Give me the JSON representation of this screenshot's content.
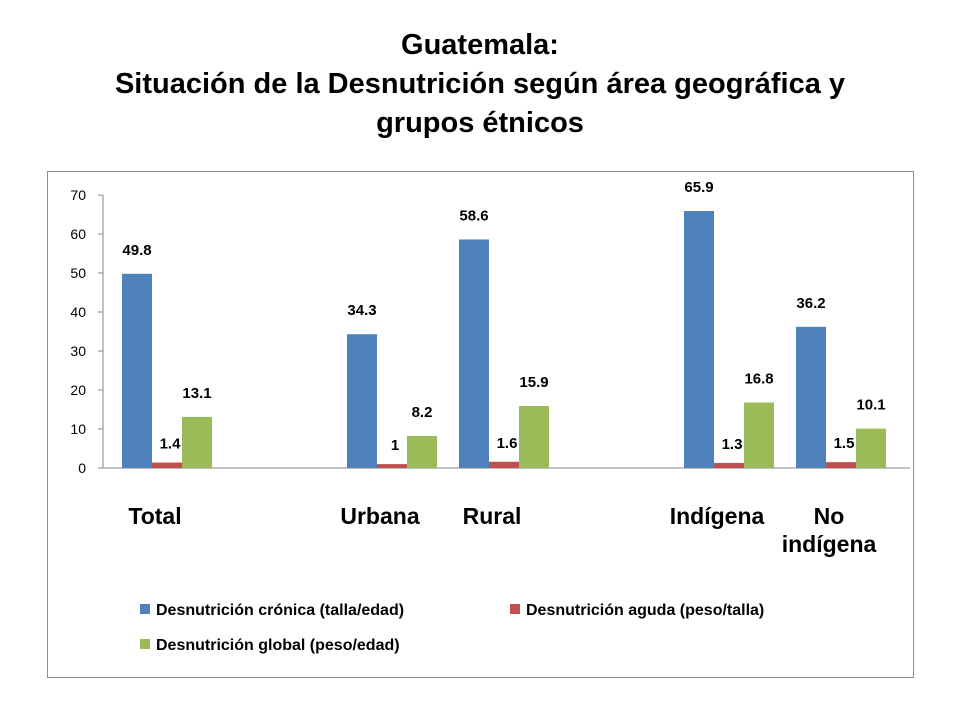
{
  "title_lines": [
    "Guatemala:",
    "Situación de la Desnutrición según área geográfica y",
    "grupos étnicos"
  ],
  "chart_data": {
    "type": "bar",
    "categories": [
      [
        "Total"
      ],
      [
        "Urbana"
      ],
      [
        "Rural"
      ],
      [
        "Indígena"
      ],
      [
        "No",
        "indígena"
      ]
    ],
    "series": [
      {
        "name": "Desnutrición crónica (talla/edad)",
        "color": "#4f81bd",
        "values": [
          49.8,
          34.3,
          58.6,
          65.9,
          36.2
        ]
      },
      {
        "name": "Desnutrición aguda (peso/talla)",
        "color": "#c0504d",
        "values": [
          1.4,
          1,
          1.6,
          1.3,
          1.5
        ]
      },
      {
        "name": "Desnutrición global (peso/edad)",
        "color": "#9bbb59",
        "values": [
          13.1,
          8.2,
          15.9,
          16.8,
          10.1
        ]
      }
    ],
    "data_labels": [
      [
        "49.8",
        "34.3",
        "58.6",
        "65.9",
        "36.2"
      ],
      [
        "1.4",
        "1",
        "1.6",
        "1.3",
        "1.5"
      ],
      [
        "13.1",
        "8.2",
        "15.9",
        "16.8",
        "10.1"
      ]
    ],
    "ylim": [
      0,
      70
    ],
    "yticks": [
      0,
      10,
      20,
      30,
      40,
      50,
      60,
      70
    ],
    "xlabel": "",
    "ylabel": "",
    "grid": false,
    "legend_position": "bottom"
  }
}
